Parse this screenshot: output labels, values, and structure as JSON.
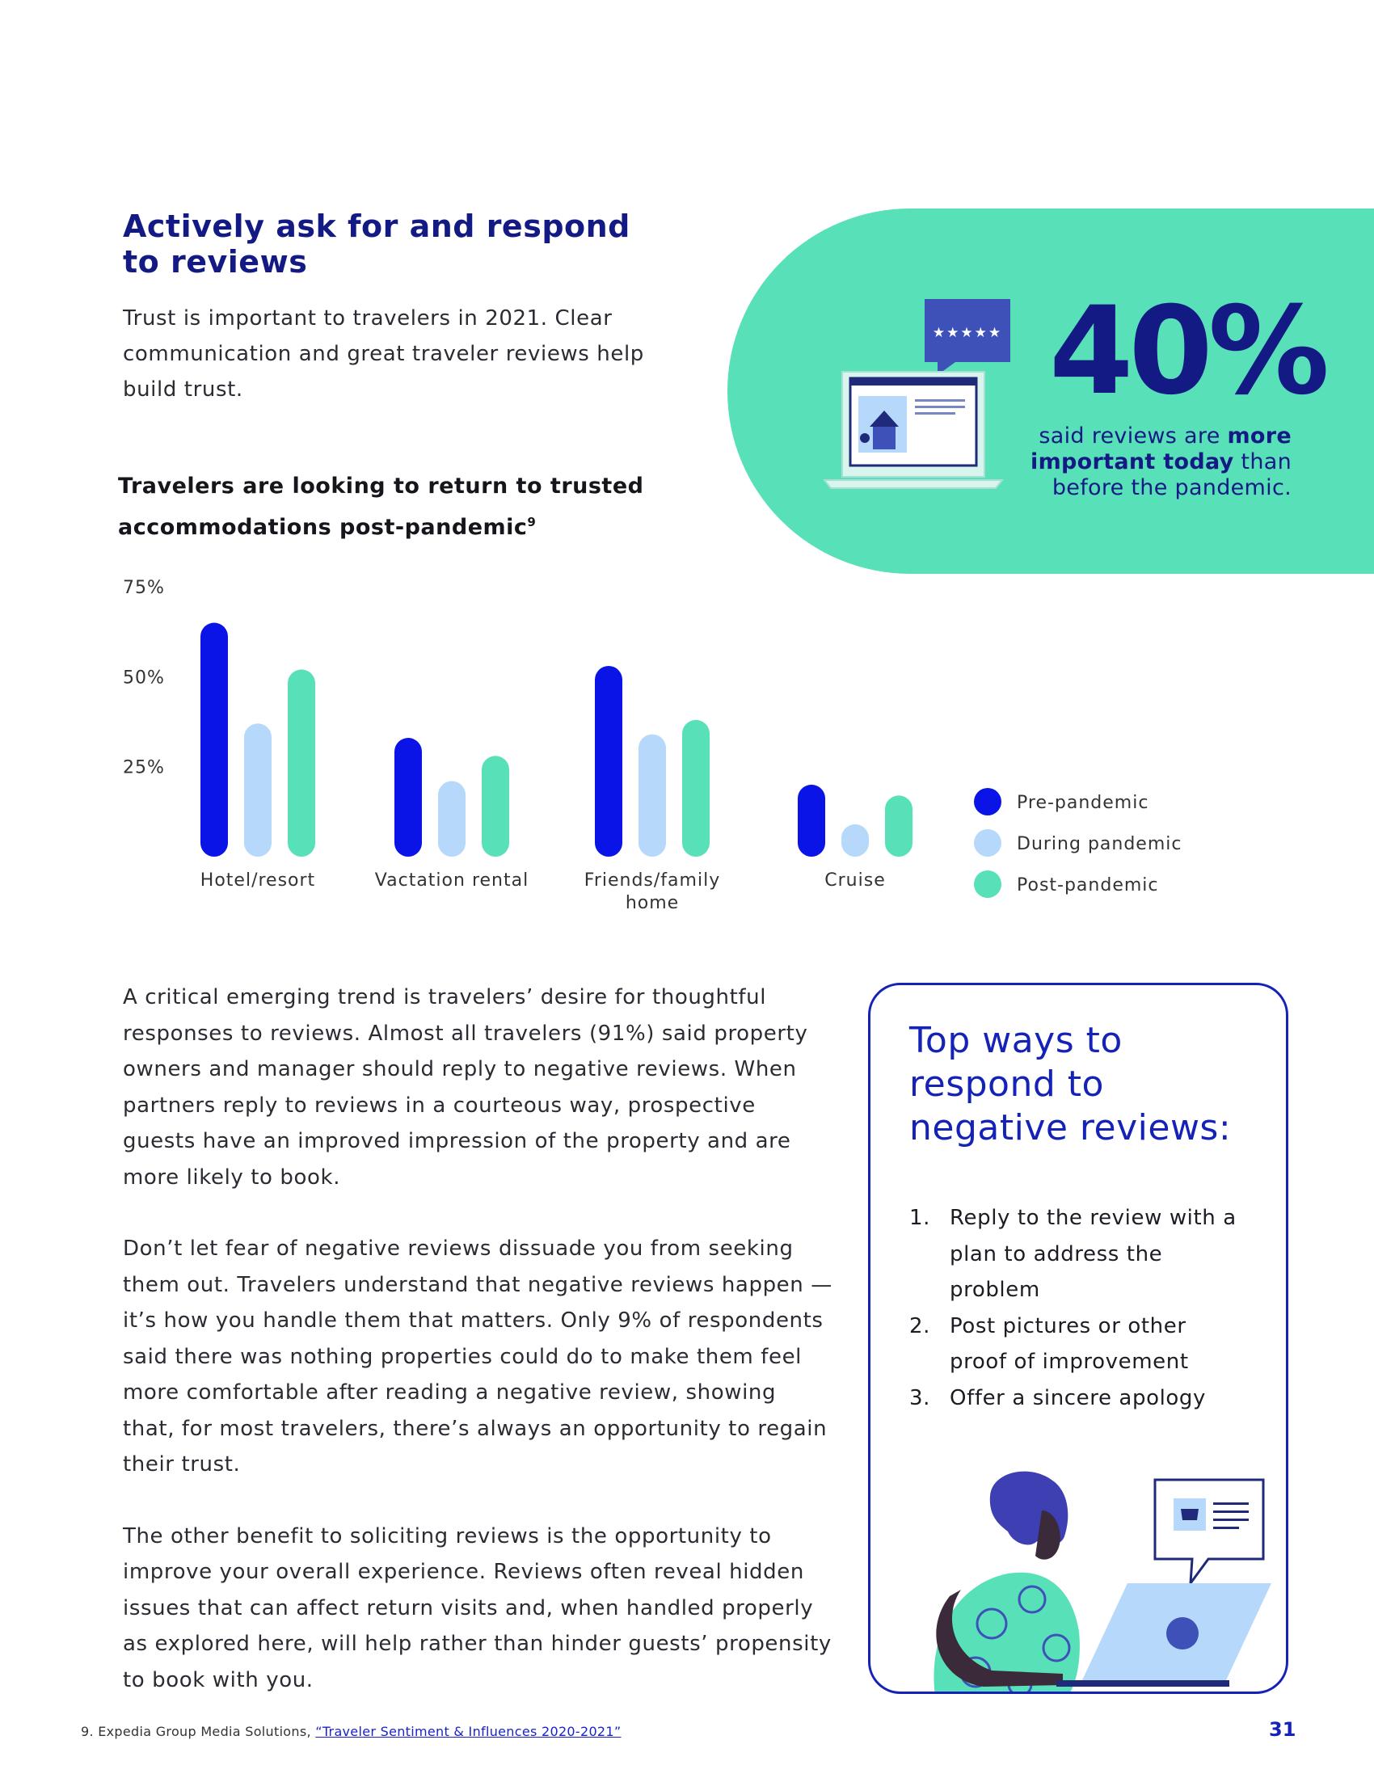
{
  "section": {
    "heading": "Actively ask for and respond to reviews",
    "intro": "Trust is important to travelers in 2021. Clear communication and great traveler reviews help build trust."
  },
  "stat": {
    "value": "40%",
    "caption_pre": "said reviews are ",
    "caption_strong": "more important today",
    "caption_post": " than before the pandemic.",
    "rating_stars": "★★★★★"
  },
  "chart_data": {
    "type": "bar",
    "title": "Travelers are looking to return to trusted accommodations post-pandemic",
    "title_footnote_mark": "9",
    "categories": [
      "Hotel/resort",
      "Vactation rental",
      "Friends/family home",
      "Cruise"
    ],
    "y_ticks": [
      "75%",
      "50%",
      "25%"
    ],
    "ylim": [
      0,
      75
    ],
    "series": [
      {
        "name": "Pre-pandemic",
        "color": "#0a14e6",
        "values": [
          65,
          33,
          53,
          20
        ]
      },
      {
        "name": "During pandemic",
        "color": "#b6d8fa",
        "values": [
          37,
          21,
          34,
          9
        ]
      },
      {
        "name": "Post-pandemic",
        "color": "#58e0b9",
        "values": [
          52,
          28,
          38,
          17
        ]
      }
    ],
    "legend_position": "right",
    "grid": false
  },
  "body": {
    "paragraphs": [
      "A critical emerging trend is travelers’ desire for thoughtful responses to reviews. Almost all travelers (91%) said property owners and manager should reply to negative reviews. When partners reply to reviews in a courteous way, prospective guests have an improved impression of the property and are more likely to book.",
      "Don’t let fear of negative reviews dissuade you from seeking them out. Travelers understand that negative reviews happen — it’s how you handle them that matters. Only 9% of respondents said there was nothing properties could do to make them feel more comfortable after reading a negative review, showing that, for most travelers, there’s always an opportunity to regain their trust.",
      "The other benefit to soliciting reviews is the opportunity to improve your overall experience. Reviews often reveal hidden issues that can affect return visits and, when handled properly as explored here, will help rather than hinder guests’ propensity to book with you."
    ]
  },
  "tips": {
    "title": "Top ways to respond to negative reviews:",
    "items": [
      {
        "num": "1.",
        "text": "Reply to the review with a plan to address the problem"
      },
      {
        "num": "2.",
        "text": "Post pictures or other proof of improvement"
      },
      {
        "num": "3.",
        "text": "Offer a sincere apology"
      }
    ]
  },
  "footer": {
    "footnote_prefix": "9. Expedia Group Media Solutions, ",
    "footnote_link": "“Traveler Sentiment & Influences 2020-2021”",
    "page_number": "31"
  },
  "colors": {
    "navy": "#141a84",
    "royal_blue": "#1522b8",
    "mint": "#58e0b9",
    "light_blue": "#b6d8fa",
    "bright_blue": "#0a14e6"
  }
}
